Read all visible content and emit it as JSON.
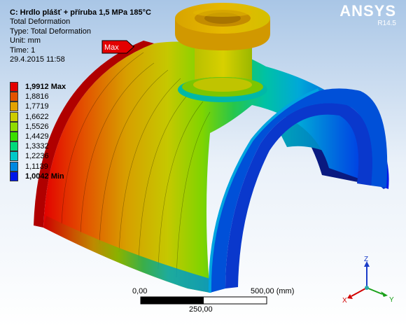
{
  "header": {
    "title": "C: Hrdlo plášť + příruba 1,5 MPa 185°C",
    "result_name": "Total Deformation",
    "type_line": "Type: Total Deformation",
    "unit_line": "Unit: mm",
    "time_line": "Time: 1",
    "date_line": "29.4.2015 11:58"
  },
  "brand": {
    "name": "ANSYS",
    "version": "R14.5"
  },
  "legend": {
    "entries": [
      {
        "label": "1,9912 Max",
        "color": "#e30000"
      },
      {
        "label": "1,8816",
        "color": "#e35300"
      },
      {
        "label": "1,7719",
        "color": "#e3a200"
      },
      {
        "label": "1,6622",
        "color": "#cccc00"
      },
      {
        "label": "1,5526",
        "color": "#8fdc00"
      },
      {
        "label": "1,4429",
        "color": "#3ade00"
      },
      {
        "label": "1,3332",
        "color": "#00d97c"
      },
      {
        "label": "1,2236",
        "color": "#00c8c8"
      },
      {
        "label": "1,1139",
        "color": "#0088e0"
      },
      {
        "label": "1,0042 Min",
        "color": "#0016e8"
      }
    ]
  },
  "probe": {
    "label": "Max"
  },
  "scale_bar": {
    "left_label": "0,00",
    "mid_label": "250,00",
    "right_label": "500,00 (mm)"
  },
  "triad": {
    "x": "X",
    "y": "Y",
    "z": "Z"
  }
}
